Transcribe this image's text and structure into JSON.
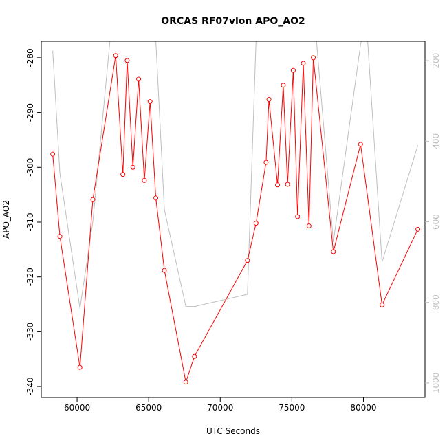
{
  "chart_data": {
    "type": "line",
    "title": "ORCAS RF07vlon APO_AO2",
    "xlabel": "UTC Seconds",
    "ylabel": "APO_AO2",
    "xlim": [
      57500,
      84300
    ],
    "ylim": [
      -342,
      -277
    ],
    "xticks": [
      60000,
      65000,
      70000,
      75000,
      80000
    ],
    "yticks": [
      -340,
      -330,
      -320,
      -310,
      -300,
      -290,
      -280
    ],
    "y2lim": [
      1036,
      152
    ],
    "y2ticks": [
      200,
      400,
      600,
      800,
      1000
    ],
    "colors": {
      "primary": "#ff0000",
      "secondary": "#bebebe"
    },
    "series": [
      {
        "axis": "left",
        "style": "line+points",
        "x": [
          58300,
          58800,
          60200,
          61100,
          62700,
          63200,
          63500,
          63900,
          64300,
          64700,
          65100,
          65500,
          66100,
          67600,
          68200,
          71900,
          72500,
          73200,
          73400,
          74000,
          74400,
          74700,
          75100,
          75400,
          75800,
          76200,
          76500,
          77900,
          79800,
          81300,
          83800
        ],
        "y": [
          -297.6,
          -312.6,
          -336.5,
          -305.9,
          -279.6,
          -301.3,
          -280.5,
          -300,
          -283.9,
          -302.4,
          -288,
          -305.6,
          -318.8,
          -339.2,
          -334.5,
          -317,
          -310.2,
          -299.1,
          -287.6,
          -303.2,
          -285,
          -303.1,
          -282.3,
          -309,
          -281,
          -310.7,
          -280,
          -315.4,
          -295.8,
          -325.1,
          -311.3
        ]
      },
      {
        "axis": "right",
        "style": "line",
        "x": [
          58300,
          58800,
          60200,
          61100,
          62300,
          62800,
          63500,
          64200,
          64800,
          65500,
          66100,
          67600,
          68200,
          71900,
          72500,
          73100,
          73500,
          74000,
          74400,
          74800,
          75300,
          75800,
          76300,
          76600,
          77900,
          79800,
          80200,
          81300,
          83800
        ],
        "y": [
          175,
          480,
          815,
          600,
          150,
          100,
          90,
          100,
          110,
          150,
          570,
          810,
          810,
          780,
          150,
          100,
          100,
          100,
          100,
          100,
          100,
          100,
          100,
          100,
          650,
          160,
          100,
          700,
          410
        ]
      }
    ]
  }
}
